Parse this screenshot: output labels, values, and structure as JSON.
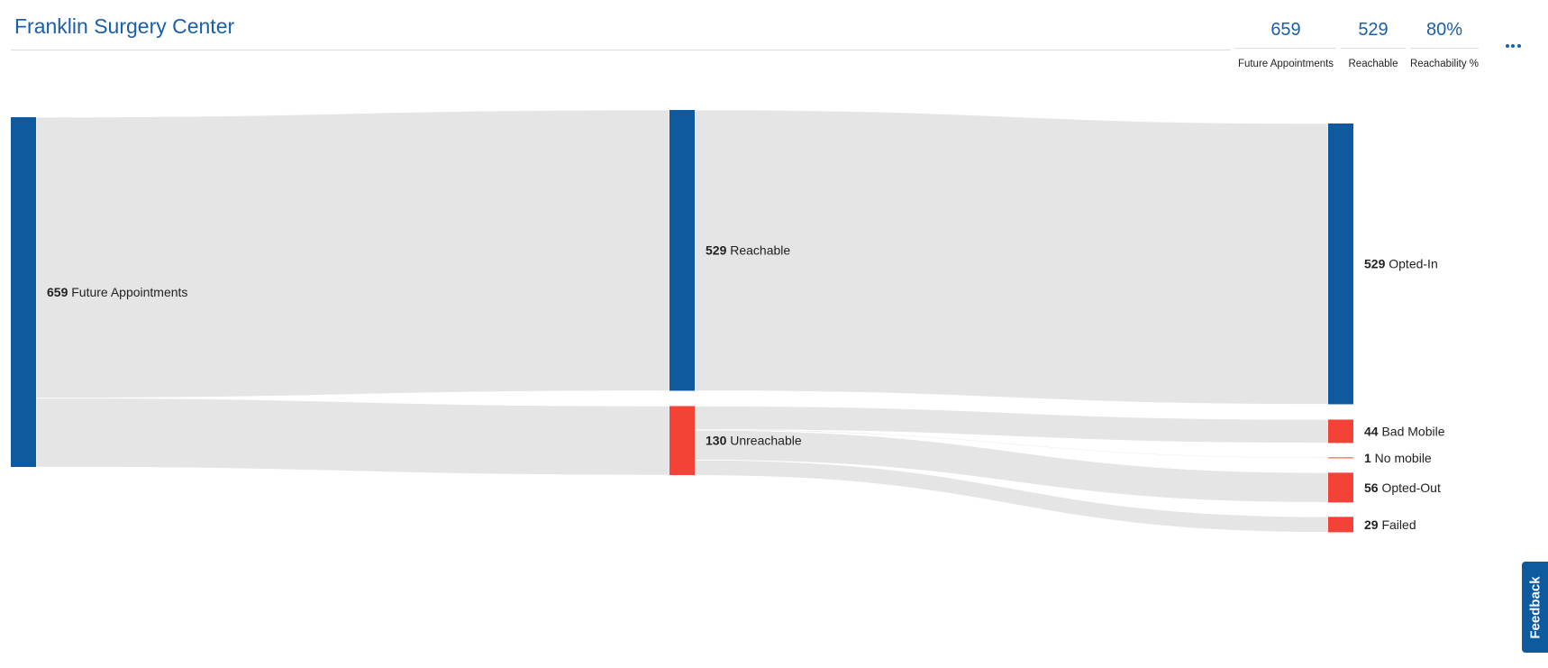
{
  "header": {
    "title": "Franklin Surgery Center",
    "kpis": [
      {
        "value": "659",
        "label": "Future Appointments"
      },
      {
        "value": "529",
        "label": "Reachable"
      },
      {
        "value": "80%",
        "label": "Reachability %"
      }
    ]
  },
  "feedback": {
    "label": "Feedback"
  },
  "colors": {
    "primary": "#0f5a9e",
    "alert": "#f44336",
    "link": "#e5e5e5",
    "accent_text": "#1b5fa8"
  },
  "chart_data": {
    "type": "sankey",
    "nodes": [
      {
        "id": "future",
        "value": 659,
        "label": "Future Appointments",
        "column": 0,
        "color": "#0f5a9e"
      },
      {
        "id": "reachable",
        "value": 529,
        "label": "Reachable",
        "column": 1,
        "color": "#0f5a9e"
      },
      {
        "id": "unreachable",
        "value": 130,
        "label": "Unreachable",
        "column": 1,
        "color": "#f44336"
      },
      {
        "id": "optedin",
        "value": 529,
        "label": "Opted-In",
        "column": 2,
        "color": "#0f5a9e"
      },
      {
        "id": "badmobile",
        "value": 44,
        "label": "Bad Mobile",
        "column": 2,
        "color": "#f44336"
      },
      {
        "id": "nomobile",
        "value": 1,
        "label": "No mobile",
        "column": 2,
        "color": "#f44336"
      },
      {
        "id": "optedout",
        "value": 56,
        "label": "Opted-Out",
        "column": 2,
        "color": "#f44336"
      },
      {
        "id": "failed",
        "value": 29,
        "label": "Failed",
        "column": 2,
        "color": "#f44336"
      }
    ],
    "links": [
      {
        "source": "future",
        "target": "reachable",
        "value": 529
      },
      {
        "source": "future",
        "target": "unreachable",
        "value": 130
      },
      {
        "source": "reachable",
        "target": "optedin",
        "value": 529
      },
      {
        "source": "unreachable",
        "target": "badmobile",
        "value": 44
      },
      {
        "source": "unreachable",
        "target": "nomobile",
        "value": 1
      },
      {
        "source": "unreachable",
        "target": "optedout",
        "value": 56
      },
      {
        "source": "unreachable",
        "target": "failed",
        "value": 29
      }
    ]
  }
}
